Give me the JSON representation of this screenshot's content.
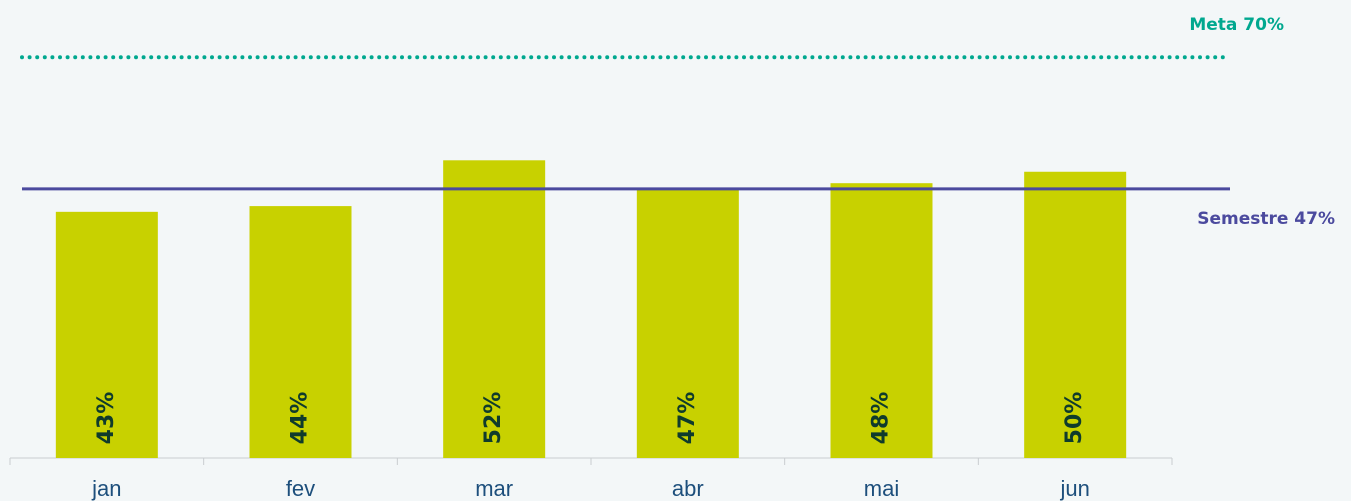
{
  "chart_data": {
    "type": "bar",
    "categories": [
      "jan",
      "fev",
      "mar",
      "abr",
      "mai",
      "jun"
    ],
    "values": [
      43,
      44,
      52,
      47,
      48,
      50
    ],
    "value_labels": [
      "43%",
      "44%",
      "52%",
      "47%",
      "48%",
      "50%"
    ],
    "color": "#c8d100",
    "ylim": [
      0,
      80
    ],
    "reference_lines": [
      {
        "label": "Meta 70%",
        "value": 70,
        "color": "#00a88f",
        "style": "dotted"
      },
      {
        "label": "Semestre 47%",
        "value": 47,
        "color": "#4b4a9e",
        "style": "solid"
      }
    ]
  }
}
